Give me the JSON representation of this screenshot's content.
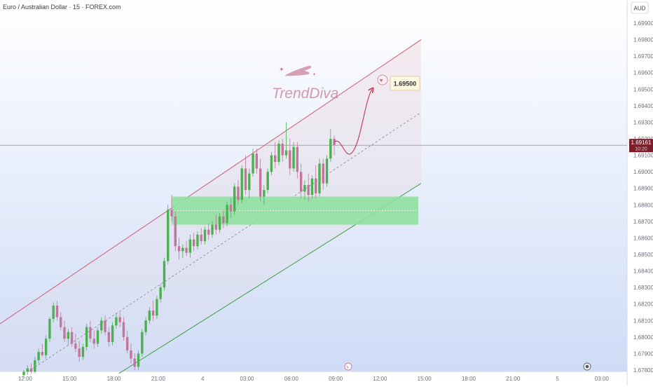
{
  "header": {
    "title": "Euro / Australian Dollar · 15 · FOREX.com"
  },
  "currency_badge": "AUD",
  "watermark": {
    "brand": "TrendDiva"
  },
  "target_label": "1.69500",
  "price_badge": {
    "price": "1.69161",
    "countdown": "10:20"
  },
  "colors": {
    "up": "#4caf50",
    "down": "#c2769a",
    "channel_upper": "#d05a6e",
    "channel_lower": "#43a047",
    "zone_fill": "#8fe0a0",
    "price_line": "#7d7d86"
  },
  "chart_data": {
    "type": "candlestick",
    "y_axis": {
      "ticks": [
        "1.67800",
        "1.67900",
        "1.68000",
        "1.68100",
        "1.68200",
        "1.68300",
        "1.68400",
        "1.68500",
        "1.68600",
        "1.68700",
        "1.68800",
        "1.68900",
        "1.69000",
        "1.69100",
        "1.69200",
        "1.69300",
        "1.69400",
        "1.69500",
        "1.69600",
        "1.69700",
        "1.69800",
        "1.69900"
      ],
      "range": [
        1.6776,
        1.6999
      ]
    },
    "x_axis": {
      "ticks": [
        "12:00",
        "15:00",
        "18:00",
        "21:00",
        "4",
        "03:00",
        "06:00",
        "09:00",
        "12:00",
        "15:00",
        "18:00",
        "21:00",
        "5",
        "03:00"
      ]
    },
    "current_price": 1.69161,
    "demand_zone": {
      "from": 1.6868,
      "to": 1.6885
    },
    "channel": {
      "upper": [
        [
          0,
          1.6808
        ],
        [
          52,
          1.698
        ]
      ],
      "lower": [
        [
          14,
          1.6778
        ],
        [
          52,
          1.6893
        ]
      ],
      "mid": [
        [
          2,
          1.6779
        ],
        [
          52,
          1.6936
        ]
      ]
    },
    "projection": {
      "from": 1.6918,
      "dip": 1.6912,
      "target": 1.695
    },
    "candles": [
      {
        "t": 0.0,
        "o": 1.6777,
        "h": 1.678,
        "l": 1.6775,
        "c": 1.6779
      },
      {
        "t": 0.25,
        "o": 1.6779,
        "h": 1.6783,
        "l": 1.6777,
        "c": 1.6781
      },
      {
        "t": 0.5,
        "o": 1.6781,
        "h": 1.6784,
        "l": 1.6778,
        "c": 1.6779
      },
      {
        "t": 0.75,
        "o": 1.6779,
        "h": 1.6788,
        "l": 1.6778,
        "c": 1.6786
      },
      {
        "t": 1.0,
        "o": 1.6786,
        "h": 1.6793,
        "l": 1.6784,
        "c": 1.6791
      },
      {
        "t": 1.25,
        "o": 1.6791,
        "h": 1.6796,
        "l": 1.6788,
        "c": 1.6789
      },
      {
        "t": 1.5,
        "o": 1.6789,
        "h": 1.6801,
        "l": 1.6787,
        "c": 1.6799
      },
      {
        "t": 1.75,
        "o": 1.6799,
        "h": 1.6812,
        "l": 1.6797,
        "c": 1.6811
      },
      {
        "t": 2.0,
        "o": 1.6811,
        "h": 1.6821,
        "l": 1.6809,
        "c": 1.6819
      },
      {
        "t": 2.25,
        "o": 1.6819,
        "h": 1.6822,
        "l": 1.681,
        "c": 1.6812
      },
      {
        "t": 2.5,
        "o": 1.6812,
        "h": 1.6815,
        "l": 1.6804,
        "c": 1.6806
      },
      {
        "t": 2.75,
        "o": 1.6806,
        "h": 1.681,
        "l": 1.6797,
        "c": 1.6799
      },
      {
        "t": 3.0,
        "o": 1.6799,
        "h": 1.6805,
        "l": 1.6795,
        "c": 1.6803
      },
      {
        "t": 3.25,
        "o": 1.6803,
        "h": 1.6806,
        "l": 1.6794,
        "c": 1.6796
      },
      {
        "t": 3.5,
        "o": 1.6796,
        "h": 1.6802,
        "l": 1.6791,
        "c": 1.6793
      },
      {
        "t": 3.75,
        "o": 1.6793,
        "h": 1.6798,
        "l": 1.6785,
        "c": 1.6788
      },
      {
        "t": 4.0,
        "o": 1.6788,
        "h": 1.6796,
        "l": 1.6786,
        "c": 1.6794
      },
      {
        "t": 4.25,
        "o": 1.6794,
        "h": 1.6808,
        "l": 1.6792,
        "c": 1.6806
      },
      {
        "t": 4.5,
        "o": 1.6806,
        "h": 1.681,
        "l": 1.6797,
        "c": 1.6799
      },
      {
        "t": 4.75,
        "o": 1.6799,
        "h": 1.6804,
        "l": 1.6793,
        "c": 1.6796
      },
      {
        "t": 5.0,
        "o": 1.6796,
        "h": 1.6806,
        "l": 1.6794,
        "c": 1.6804
      },
      {
        "t": 5.25,
        "o": 1.6804,
        "h": 1.6812,
        "l": 1.6802,
        "c": 1.681
      },
      {
        "t": 5.5,
        "o": 1.681,
        "h": 1.6813,
        "l": 1.6801,
        "c": 1.6803
      },
      {
        "t": 5.75,
        "o": 1.6803,
        "h": 1.6806,
        "l": 1.6794,
        "c": 1.6797
      },
      {
        "t": 6.0,
        "o": 1.6797,
        "h": 1.6809,
        "l": 1.6795,
        "c": 1.6807
      },
      {
        "t": 6.25,
        "o": 1.6807,
        "h": 1.6814,
        "l": 1.6805,
        "c": 1.6812
      },
      {
        "t": 6.5,
        "o": 1.6812,
        "h": 1.6815,
        "l": 1.6806,
        "c": 1.6809
      },
      {
        "t": 6.75,
        "o": 1.6809,
        "h": 1.6812,
        "l": 1.6798,
        "c": 1.68
      },
      {
        "t": 7.0,
        "o": 1.68,
        "h": 1.6804,
        "l": 1.679,
        "c": 1.6792
      },
      {
        "t": 7.25,
        "o": 1.6792,
        "h": 1.6796,
        "l": 1.6784,
        "c": 1.6787
      },
      {
        "t": 7.5,
        "o": 1.6787,
        "h": 1.679,
        "l": 1.678,
        "c": 1.6782
      },
      {
        "t": 7.75,
        "o": 1.6782,
        "h": 1.6792,
        "l": 1.678,
        "c": 1.679
      },
      {
        "t": 8.0,
        "o": 1.679,
        "h": 1.6805,
        "l": 1.6788,
        "c": 1.6803
      },
      {
        "t": 8.25,
        "o": 1.6803,
        "h": 1.6812,
        "l": 1.6801,
        "c": 1.681
      },
      {
        "t": 8.5,
        "o": 1.681,
        "h": 1.6818,
        "l": 1.6808,
        "c": 1.6816
      },
      {
        "t": 8.75,
        "o": 1.6816,
        "h": 1.6822,
        "l": 1.681,
        "c": 1.6813
      },
      {
        "t": 9.0,
        "o": 1.6813,
        "h": 1.6825,
        "l": 1.6811,
        "c": 1.6823
      },
      {
        "t": 9.25,
        "o": 1.6823,
        "h": 1.6832,
        "l": 1.6821,
        "c": 1.683
      },
      {
        "t": 9.5,
        "o": 1.683,
        "h": 1.6848,
        "l": 1.6828,
        "c": 1.6846
      },
      {
        "t": 9.75,
        "o": 1.6846,
        "h": 1.688,
        "l": 1.6844,
        "c": 1.6877
      },
      {
        "t": 10.0,
        "o": 1.6877,
        "h": 1.6886,
        "l": 1.687,
        "c": 1.6873
      },
      {
        "t": 10.25,
        "o": 1.6873,
        "h": 1.6876,
        "l": 1.6852,
        "c": 1.6855
      },
      {
        "t": 10.5,
        "o": 1.6855,
        "h": 1.686,
        "l": 1.6847,
        "c": 1.6852
      },
      {
        "t": 10.75,
        "o": 1.6852,
        "h": 1.6856,
        "l": 1.6848,
        "c": 1.6854
      },
      {
        "t": 11.0,
        "o": 1.6854,
        "h": 1.6858,
        "l": 1.6849,
        "c": 1.6851
      },
      {
        "t": 11.25,
        "o": 1.6851,
        "h": 1.6862,
        "l": 1.6848,
        "c": 1.6859
      },
      {
        "t": 11.5,
        "o": 1.6859,
        "h": 1.6863,
        "l": 1.6852,
        "c": 1.6855
      },
      {
        "t": 11.75,
        "o": 1.6855,
        "h": 1.6864,
        "l": 1.6853,
        "c": 1.6862
      },
      {
        "t": 12.0,
        "o": 1.6862,
        "h": 1.6866,
        "l": 1.6856,
        "c": 1.6858
      },
      {
        "t": 12.25,
        "o": 1.6858,
        "h": 1.6867,
        "l": 1.6856,
        "c": 1.6865
      },
      {
        "t": 12.5,
        "o": 1.6865,
        "h": 1.6869,
        "l": 1.6859,
        "c": 1.6862
      },
      {
        "t": 12.75,
        "o": 1.6862,
        "h": 1.687,
        "l": 1.686,
        "c": 1.6868
      },
      {
        "t": 13.0,
        "o": 1.6868,
        "h": 1.6874,
        "l": 1.6862,
        "c": 1.6865
      },
      {
        "t": 13.25,
        "o": 1.6865,
        "h": 1.6875,
        "l": 1.6863,
        "c": 1.6873
      },
      {
        "t": 13.5,
        "o": 1.6873,
        "h": 1.6877,
        "l": 1.6866,
        "c": 1.6869
      },
      {
        "t": 13.75,
        "o": 1.6869,
        "h": 1.6882,
        "l": 1.6867,
        "c": 1.688
      },
      {
        "t": 14.0,
        "o": 1.688,
        "h": 1.6884,
        "l": 1.6872,
        "c": 1.6876
      },
      {
        "t": 14.25,
        "o": 1.6876,
        "h": 1.6893,
        "l": 1.6874,
        "c": 1.6891
      },
      {
        "t": 14.5,
        "o": 1.6891,
        "h": 1.6895,
        "l": 1.688,
        "c": 1.6883
      },
      {
        "t": 14.75,
        "o": 1.6883,
        "h": 1.6904,
        "l": 1.6881,
        "c": 1.6902
      },
      {
        "t": 15.0,
        "o": 1.6902,
        "h": 1.691,
        "l": 1.6886,
        "c": 1.6889
      },
      {
        "t": 15.25,
        "o": 1.6889,
        "h": 1.6902,
        "l": 1.6884,
        "c": 1.6899
      },
      {
        "t": 15.5,
        "o": 1.6899,
        "h": 1.6914,
        "l": 1.6897,
        "c": 1.6911
      },
      {
        "t": 15.75,
        "o": 1.6911,
        "h": 1.6914,
        "l": 1.6899,
        "c": 1.6902
      },
      {
        "t": 16.0,
        "o": 1.6902,
        "h": 1.6908,
        "l": 1.6882,
        "c": 1.6885
      },
      {
        "t": 16.25,
        "o": 1.6885,
        "h": 1.6892,
        "l": 1.688,
        "c": 1.6889
      },
      {
        "t": 16.5,
        "o": 1.6889,
        "h": 1.6902,
        "l": 1.6887,
        "c": 1.69
      },
      {
        "t": 16.75,
        "o": 1.69,
        "h": 1.6912,
        "l": 1.6898,
        "c": 1.691
      },
      {
        "t": 17.0,
        "o": 1.691,
        "h": 1.6918,
        "l": 1.6902,
        "c": 1.6906
      },
      {
        "t": 17.25,
        "o": 1.6906,
        "h": 1.6919,
        "l": 1.6904,
        "c": 1.6917
      },
      {
        "t": 17.5,
        "o": 1.6917,
        "h": 1.692,
        "l": 1.6906,
        "c": 1.691
      },
      {
        "t": 17.75,
        "o": 1.691,
        "h": 1.693,
        "l": 1.6908,
        "c": 1.6913
      },
      {
        "t": 18.0,
        "o": 1.6913,
        "h": 1.692,
        "l": 1.6898,
        "c": 1.6902
      },
      {
        "t": 18.25,
        "o": 1.6902,
        "h": 1.6918,
        "l": 1.69,
        "c": 1.6915
      },
      {
        "t": 18.5,
        "o": 1.6915,
        "h": 1.6918,
        "l": 1.6896,
        "c": 1.69
      },
      {
        "t": 18.75,
        "o": 1.69,
        "h": 1.6905,
        "l": 1.6884,
        "c": 1.6888
      },
      {
        "t": 19.0,
        "o": 1.6888,
        "h": 1.6895,
        "l": 1.6883,
        "c": 1.6892
      },
      {
        "t": 19.25,
        "o": 1.6892,
        "h": 1.6899,
        "l": 1.6882,
        "c": 1.6886
      },
      {
        "t": 19.5,
        "o": 1.6886,
        "h": 1.6898,
        "l": 1.6884,
        "c": 1.6896
      },
      {
        "t": 19.75,
        "o": 1.6896,
        "h": 1.6904,
        "l": 1.6884,
        "c": 1.6887
      },
      {
        "t": 20.0,
        "o": 1.6887,
        "h": 1.6908,
        "l": 1.6885,
        "c": 1.6905
      },
      {
        "t": 20.25,
        "o": 1.6905,
        "h": 1.6908,
        "l": 1.6889,
        "c": 1.6893
      },
      {
        "t": 20.5,
        "o": 1.6893,
        "h": 1.691,
        "l": 1.6891,
        "c": 1.6908
      },
      {
        "t": 20.75,
        "o": 1.6908,
        "h": 1.6926,
        "l": 1.6906,
        "c": 1.692
      },
      {
        "t": 21.0,
        "o": 1.692,
        "h": 1.6922,
        "l": 1.691,
        "c": 1.6916
      }
    ]
  }
}
